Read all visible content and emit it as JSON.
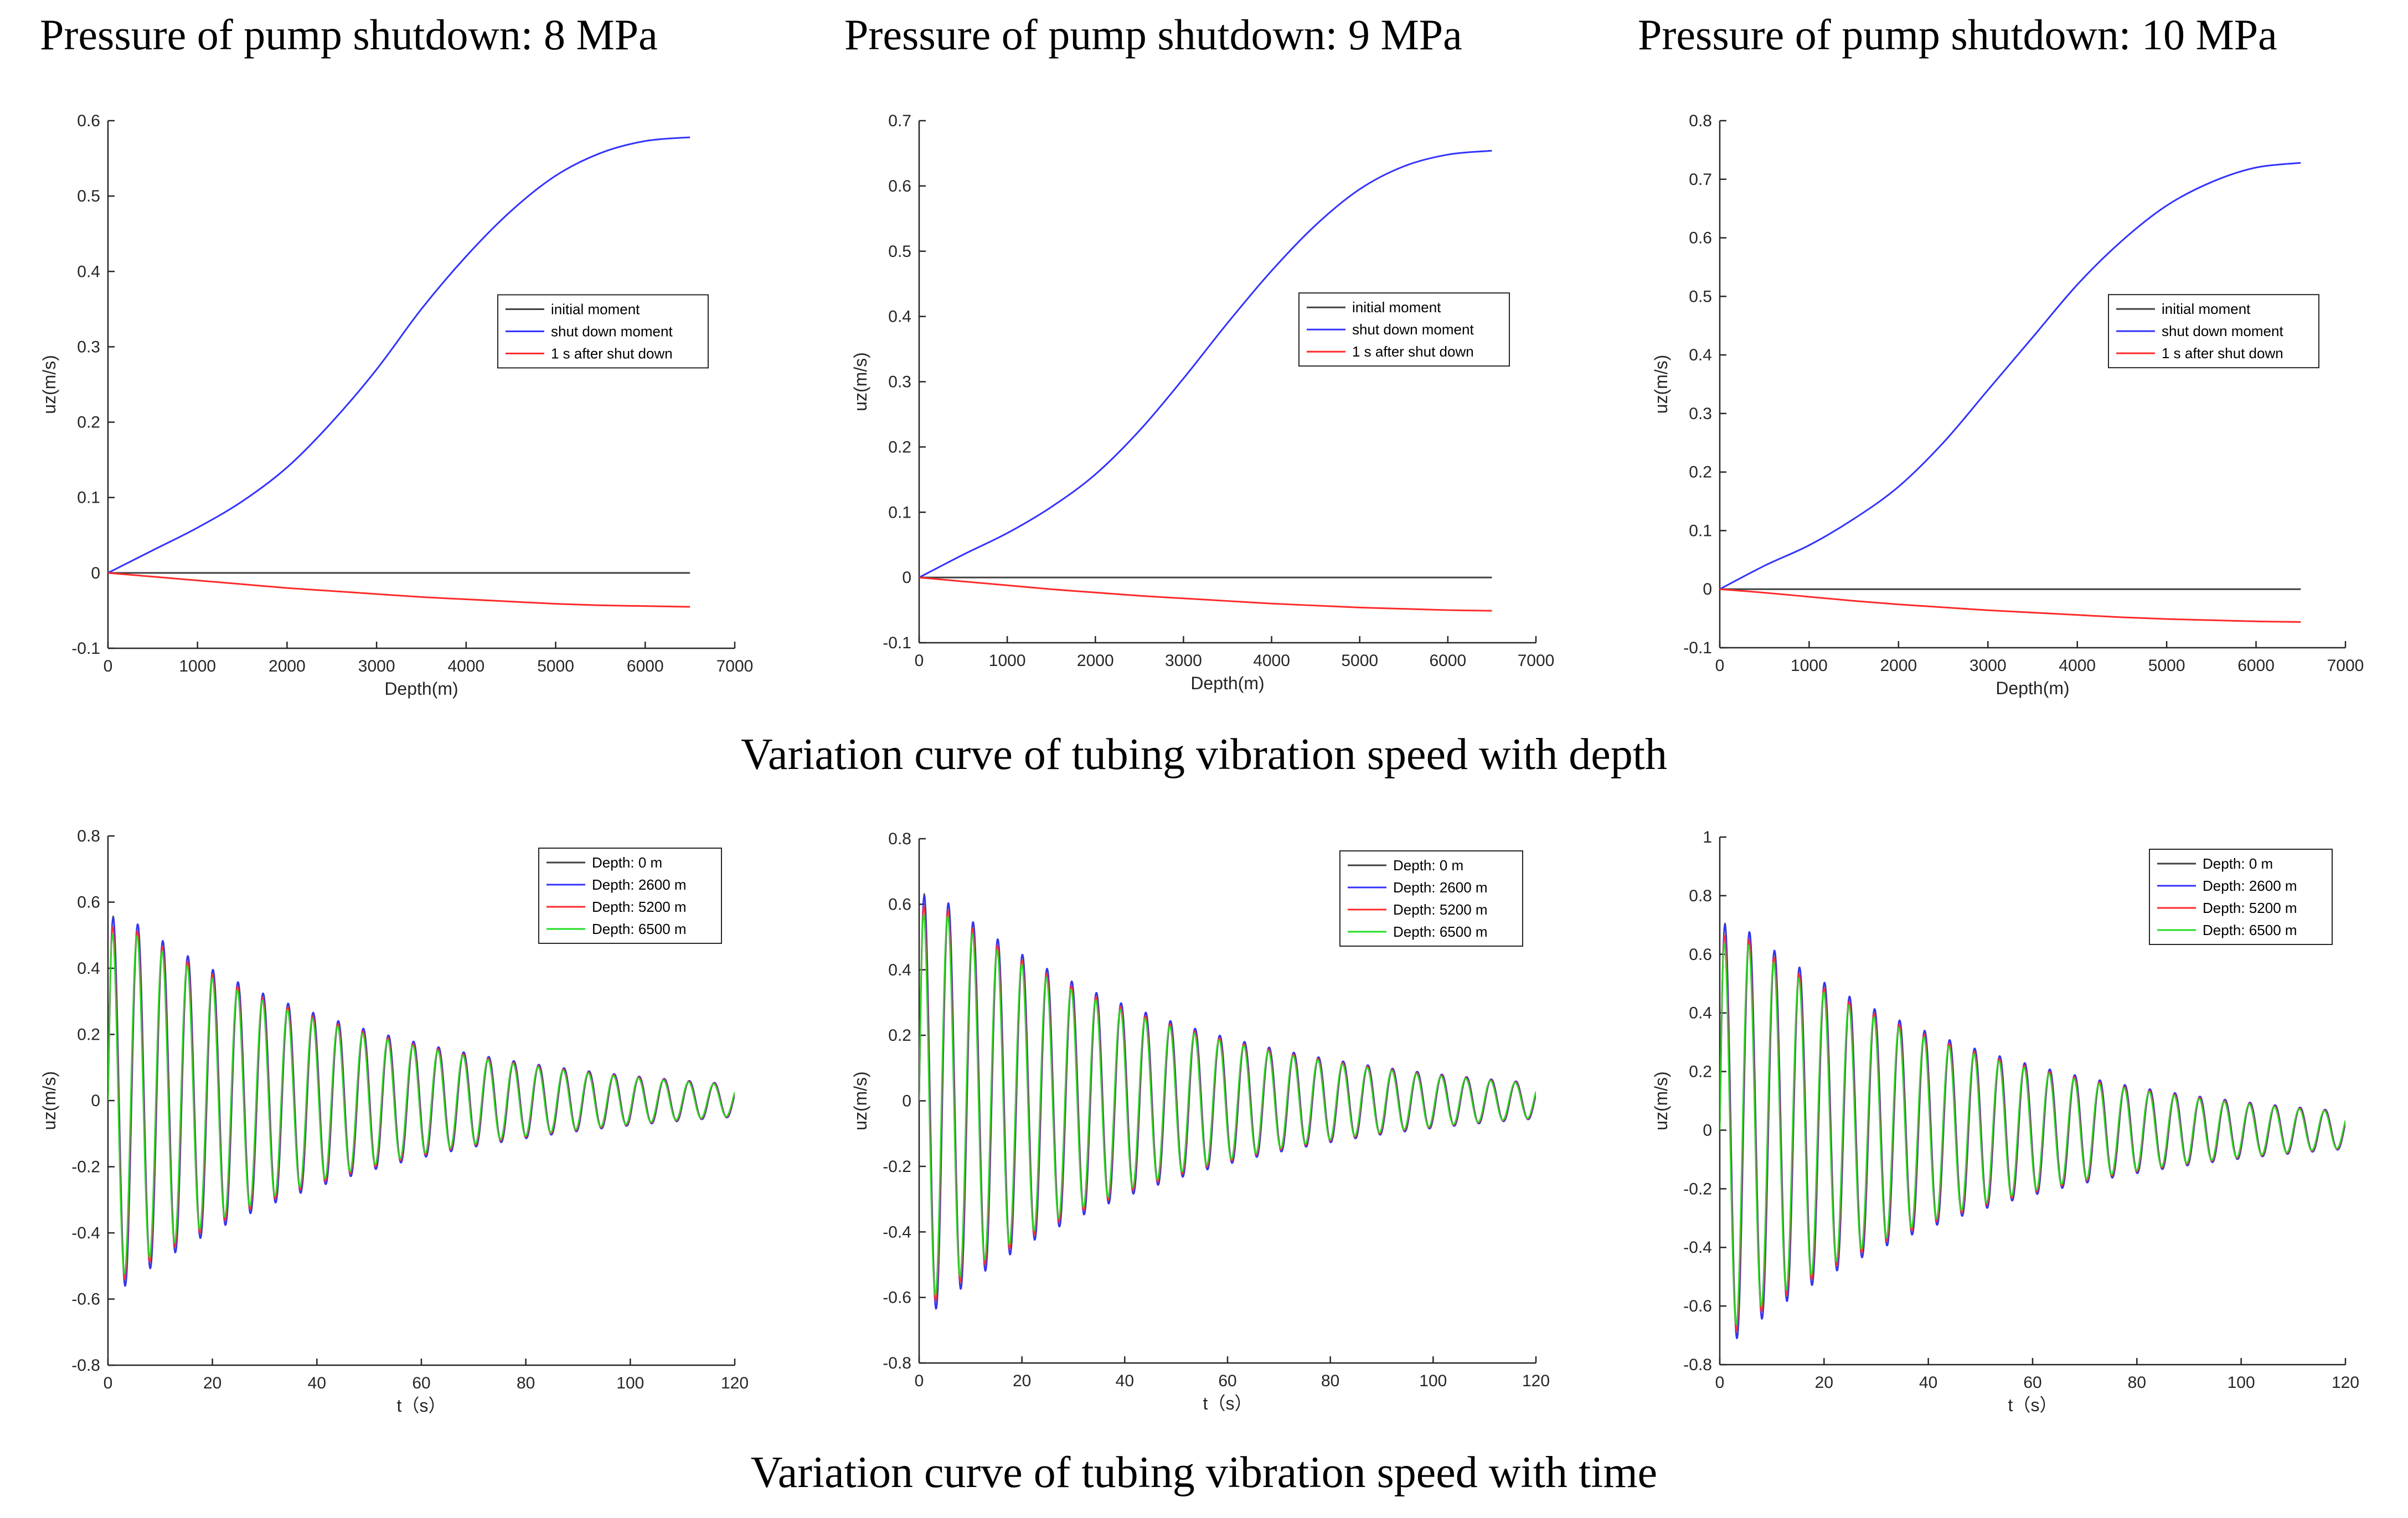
{
  "column_titles": [
    "Pressure of pump shutdown: 8 MPa",
    "Pressure of pump shutdown: 9 MPa",
    "Pressure of pump shutdown: 10 MPa"
  ],
  "row_captions": {
    "depth": "Variation curve of tubing vibration speed with depth",
    "time": "Variation curve of tubing vibration speed with time"
  },
  "colors": {
    "black": "#404040",
    "blue": "#3333ff",
    "red": "#ff2a2a",
    "green": "#22dd22",
    "axis": "#262626"
  },
  "chart_data": [
    {
      "type": "line",
      "title": "Pressure of pump shutdown: 8 MPa",
      "xlabel": "Depth(m)",
      "ylabel": "uz(m/s)",
      "xlim": [
        0,
        7000
      ],
      "ylim": [
        -0.1,
        0.6
      ],
      "xticks": [
        0,
        1000,
        2000,
        3000,
        4000,
        5000,
        6000,
        7000
      ],
      "yticks": [
        -0.1,
        0,
        0.1,
        0.2,
        0.3,
        0.4,
        0.5,
        0.6
      ],
      "x": [
        0,
        500,
        1000,
        1500,
        2000,
        2500,
        3000,
        3500,
        4000,
        4500,
        5000,
        5500,
        6000,
        6500
      ],
      "series": [
        {
          "name": "initial moment",
          "color": "black",
          "values": [
            0,
            0,
            0,
            0,
            0,
            0,
            0,
            0,
            0,
            0,
            0,
            0,
            0,
            0
          ]
        },
        {
          "name": "shut down moment",
          "color": "blue",
          "values": [
            0,
            0.03,
            0.06,
            0.095,
            0.14,
            0.2,
            0.27,
            0.35,
            0.42,
            0.48,
            0.527,
            0.557,
            0.573,
            0.578
          ]
        },
        {
          "name": "1 s after shut down",
          "color": "red",
          "values": [
            0,
            -0.005,
            -0.01,
            -0.015,
            -0.02,
            -0.024,
            -0.028,
            -0.032,
            -0.035,
            -0.038,
            -0.041,
            -0.043,
            -0.044,
            -0.045
          ]
        }
      ],
      "legend": "upper-right-middle"
    },
    {
      "type": "line",
      "title": "Pressure of pump shutdown: 9 MPa",
      "xlabel": "Depth(m)",
      "ylabel": "uz(m/s)",
      "xlim": [
        0,
        7000
      ],
      "ylim": [
        -0.1,
        0.7
      ],
      "xticks": [
        0,
        1000,
        2000,
        3000,
        4000,
        5000,
        6000,
        7000
      ],
      "yticks": [
        -0.1,
        0,
        0.1,
        0.2,
        0.3,
        0.4,
        0.5,
        0.6,
        0.7
      ],
      "x": [
        0,
        500,
        1000,
        1500,
        2000,
        2500,
        3000,
        3500,
        4000,
        4500,
        5000,
        5500,
        6000,
        6500
      ],
      "series": [
        {
          "name": "initial moment",
          "color": "black",
          "values": [
            0,
            0,
            0,
            0,
            0,
            0,
            0,
            0,
            0,
            0,
            0,
            0,
            0,
            0
          ]
        },
        {
          "name": "shut down moment",
          "color": "blue",
          "values": [
            0,
            0.035,
            0.068,
            0.108,
            0.158,
            0.225,
            0.305,
            0.39,
            0.47,
            0.54,
            0.595,
            0.63,
            0.648,
            0.654
          ]
        },
        {
          "name": "1 s after shut down",
          "color": "red",
          "values": [
            0,
            -0.006,
            -0.012,
            -0.018,
            -0.023,
            -0.028,
            -0.032,
            -0.036,
            -0.04,
            -0.043,
            -0.046,
            -0.048,
            -0.05,
            -0.051
          ]
        }
      ],
      "legend": "upper-right-middle"
    },
    {
      "type": "line",
      "title": "Pressure of pump shutdown: 10 MPa",
      "xlabel": "Depth(m)",
      "ylabel": "uz(m/s)",
      "xlim": [
        0,
        7000
      ],
      "ylim": [
        -0.1,
        0.8
      ],
      "xticks": [
        0,
        1000,
        2000,
        3000,
        4000,
        5000,
        6000,
        7000
      ],
      "yticks": [
        -0.1,
        0,
        0.1,
        0.2,
        0.3,
        0.4,
        0.5,
        0.6,
        0.7,
        0.8
      ],
      "x": [
        0,
        500,
        1000,
        1500,
        2000,
        2500,
        3000,
        3500,
        4000,
        4500,
        5000,
        5500,
        6000,
        6500
      ],
      "series": [
        {
          "name": "initial moment",
          "color": "black",
          "values": [
            0,
            0,
            0,
            0,
            0,
            0,
            0,
            0,
            0,
            0,
            0,
            0,
            0,
            0
          ]
        },
        {
          "name": "shut down moment",
          "color": "blue",
          "values": [
            0,
            0.04,
            0.075,
            0.12,
            0.175,
            0.25,
            0.34,
            0.43,
            0.52,
            0.595,
            0.655,
            0.695,
            0.72,
            0.728
          ]
        },
        {
          "name": "1 s after shut down",
          "color": "red",
          "values": [
            0,
            -0.006,
            -0.013,
            -0.02,
            -0.026,
            -0.031,
            -0.036,
            -0.04,
            -0.044,
            -0.048,
            -0.051,
            -0.053,
            -0.055,
            -0.056
          ]
        }
      ],
      "legend": "upper-right-middle"
    },
    {
      "type": "line",
      "title": "",
      "xlabel": "t（s）",
      "ylabel": "uz(m/s)",
      "xlim": [
        0,
        120
      ],
      "ylim": [
        -0.8,
        0.8
      ],
      "xticks": [
        0,
        20,
        40,
        60,
        80,
        100,
        120
      ],
      "yticks": [
        -0.8,
        -0.6,
        -0.4,
        -0.2,
        0,
        0.2,
        0.4,
        0.6,
        0.8
      ],
      "oscillation": {
        "amplitude_start": 0.6,
        "amplitude_end": 0.05,
        "period_s": 4.8,
        "t_end": 120
      },
      "series": [
        {
          "name": "Depth: 0 m",
          "color": "black",
          "scale": 1.0,
          "phase_s": 0
        },
        {
          "name": "Depth: 2600 m",
          "color": "blue",
          "scale": 1.0,
          "phase_s": 0.05
        },
        {
          "name": "Depth: 5200 m",
          "color": "red",
          "scale": 0.96,
          "phase_s": 0.12
        },
        {
          "name": "Depth: 6500 m",
          "color": "green",
          "scale": 0.93,
          "phase_s": 0.18
        }
      ],
      "legend": "top-right"
    },
    {
      "type": "line",
      "title": "",
      "xlabel": "t（s）",
      "ylabel": "uz(m/s)",
      "xlim": [
        0,
        120
      ],
      "ylim": [
        -0.8,
        0.8
      ],
      "xticks": [
        0,
        20,
        40,
        60,
        80,
        100,
        120
      ],
      "yticks": [
        -0.8,
        -0.6,
        -0.4,
        -0.2,
        0,
        0.2,
        0.4,
        0.6,
        0.8
      ],
      "oscillation": {
        "amplitude_start": 0.68,
        "amplitude_end": 0.055,
        "period_s": 4.8,
        "t_end": 120
      },
      "series": [
        {
          "name": "Depth: 0 m",
          "color": "black",
          "scale": 1.0,
          "phase_s": 0
        },
        {
          "name": "Depth: 2600 m",
          "color": "blue",
          "scale": 1.0,
          "phase_s": 0.05
        },
        {
          "name": "Depth: 5200 m",
          "color": "red",
          "scale": 0.96,
          "phase_s": 0.12
        },
        {
          "name": "Depth: 6500 m",
          "color": "green",
          "scale": 0.93,
          "phase_s": 0.18
        }
      ],
      "legend": "top-right"
    },
    {
      "type": "line",
      "title": "",
      "xlabel": "t（s）",
      "ylabel": "uz(m/s)",
      "xlim": [
        0,
        120
      ],
      "ylim": [
        -0.8,
        1
      ],
      "xticks": [
        0,
        20,
        40,
        60,
        80,
        100,
        120
      ],
      "yticks": [
        -0.8,
        -0.6,
        -0.4,
        -0.2,
        0,
        0.2,
        0.4,
        0.6,
        0.8,
        1
      ],
      "oscillation": {
        "amplitude_start": 0.76,
        "amplitude_end": 0.065,
        "period_s": 4.8,
        "t_end": 120
      },
      "series": [
        {
          "name": "Depth: 0 m",
          "color": "black",
          "scale": 1.0,
          "phase_s": 0
        },
        {
          "name": "Depth: 2600 m",
          "color": "blue",
          "scale": 1.0,
          "phase_s": 0.05
        },
        {
          "name": "Depth: 5200 m",
          "color": "red",
          "scale": 0.96,
          "phase_s": 0.12
        },
        {
          "name": "Depth: 6500 m",
          "color": "green",
          "scale": 0.93,
          "phase_s": 0.18
        }
      ],
      "legend": "top-right"
    }
  ]
}
